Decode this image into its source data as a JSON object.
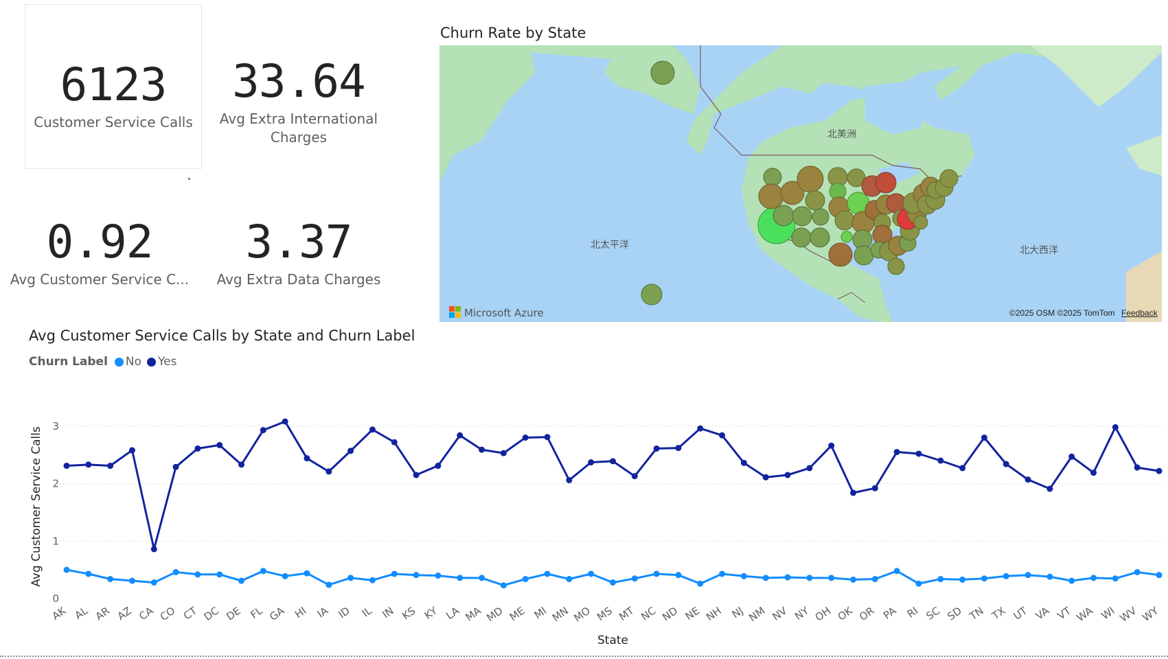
{
  "kpis": [
    {
      "value": "6123",
      "label": "Customer Service Calls"
    },
    {
      "value": "33.64",
      "label": "Avg Extra International Charges"
    },
    {
      "value": "0.92",
      "label": "Avg Customer Service C..."
    },
    {
      "value": "3.37",
      "label": "Avg Extra Data Charges"
    }
  ],
  "map": {
    "title": "Churn Rate by State",
    "labels": {
      "north_america": "北美洲",
      "north_pacific": "北太平洋",
      "north_atlantic": "北大西洋"
    },
    "logo_text": "Microsoft Azure",
    "attribution": "©2025 OSM  ©2025 TomTom",
    "feedback": "Feedback",
    "colors": {
      "ocean": "#a8d3f5",
      "land": "#b4e2b6",
      "land_dark": "#cdebc9",
      "border": "#7a5a5a"
    }
  },
  "line_chart": {
    "title": "Avg Customer Service Calls by State and Churn Label",
    "legend_title": "Churn Label"
  },
  "chart_data": {
    "type": "line",
    "title": "Avg Customer Service Calls by State and Churn Label",
    "xlabel": "State",
    "ylabel": "Avg Customer Service Calls",
    "ylim": [
      0,
      3.2
    ],
    "yticks": [
      0,
      1,
      2,
      3
    ],
    "grid": true,
    "legend_placement": "top-left",
    "categories": [
      "AK",
      "AL",
      "AR",
      "AZ",
      "CA",
      "CO",
      "CT",
      "DC",
      "DE",
      "FL",
      "GA",
      "HI",
      "IA",
      "ID",
      "IL",
      "IN",
      "KS",
      "KY",
      "LA",
      "MA",
      "MD",
      "ME",
      "MI",
      "MN",
      "MO",
      "MS",
      "MT",
      "NC",
      "ND",
      "NE",
      "NH",
      "NJ",
      "NM",
      "NV",
      "NY",
      "OH",
      "OK",
      "OR",
      "PA",
      "RI",
      "SC",
      "SD",
      "TN",
      "TX",
      "UT",
      "VA",
      "VT",
      "WA",
      "WI",
      "WV",
      "WY"
    ],
    "series": [
      {
        "name": "No",
        "color": "#118dff",
        "values": [
          0.5,
          0.43,
          0.34,
          0.31,
          0.28,
          0.46,
          0.42,
          0.42,
          0.31,
          0.48,
          0.39,
          0.44,
          0.24,
          0.36,
          0.32,
          0.43,
          0.41,
          0.4,
          0.36,
          0.36,
          0.23,
          0.34,
          0.43,
          0.34,
          0.43,
          0.28,
          0.35,
          0.43,
          0.41,
          0.26,
          0.43,
          0.39,
          0.36,
          0.37,
          0.36,
          0.36,
          0.33,
          0.34,
          0.48,
          0.26,
          0.34,
          0.33,
          0.35,
          0.39,
          0.41,
          0.38,
          0.31,
          0.36,
          0.35,
          0.46,
          0.41
        ]
      },
      {
        "name": "Yes",
        "color": "#12239e",
        "values": [
          2.31,
          2.33,
          2.31,
          2.58,
          0.86,
          2.29,
          2.61,
          2.67,
          2.33,
          2.93,
          3.08,
          2.44,
          2.21,
          2.57,
          2.94,
          2.72,
          2.15,
          2.31,
          2.84,
          2.59,
          2.53,
          2.8,
          2.81,
          2.06,
          2.37,
          2.39,
          2.13,
          2.61,
          2.62,
          2.96,
          2.84,
          2.36,
          2.11,
          2.15,
          2.27,
          2.66,
          1.84,
          1.92,
          2.55,
          2.52,
          2.4,
          2.27,
          2.8,
          2.34,
          2.07,
          1.91,
          2.47,
          2.19,
          2.98,
          2.28,
          2.22
        ]
      }
    ]
  }
}
